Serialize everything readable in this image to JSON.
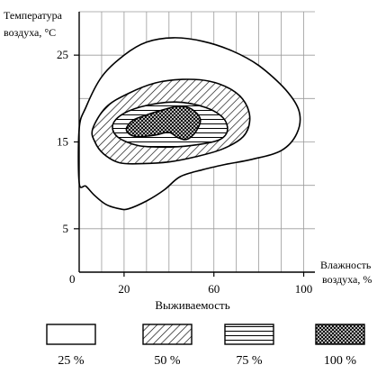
{
  "chart_data": {
    "type": "contour",
    "ylabel_line1": "Температура",
    "ylabel_line2": "воздуха, °С",
    "xlabel_line1": "Влажность",
    "xlabel_line2": "воздуха, %",
    "legend_title": "Выживаемость",
    "x_ticks": [
      "20",
      "60",
      "100"
    ],
    "y_ticks": [
      "5",
      "15",
      "25"
    ],
    "origin_label": "0",
    "xlim": [
      0,
      105
    ],
    "ylim": [
      0,
      30
    ],
    "grid": true,
    "legend_position": "bottom",
    "zones": [
      {
        "label": "25 %",
        "pattern": "blank",
        "outline": [
          [
            0,
            16.5
          ],
          [
            3,
            19
          ],
          [
            10,
            22.5
          ],
          [
            20,
            25
          ],
          [
            30,
            26.5
          ],
          [
            42,
            27
          ],
          [
            55,
            26.6
          ],
          [
            68,
            25.5
          ],
          [
            80,
            23.8
          ],
          [
            92,
            21
          ],
          [
            98,
            18.5
          ],
          [
            97,
            16
          ],
          [
            90,
            14
          ],
          [
            77,
            13
          ],
          [
            65,
            12.4
          ],
          [
            55,
            11.8
          ],
          [
            45,
            11
          ],
          [
            38,
            9.5
          ],
          [
            30,
            8.2
          ],
          [
            22,
            7.3
          ],
          [
            18,
            7.3
          ],
          [
            12,
            7.8
          ],
          [
            7,
            8.8
          ],
          [
            3,
            9.9
          ],
          [
            0,
            10.3
          ]
        ]
      },
      {
        "label": "50 %",
        "pattern": "hatch",
        "outline": [
          [
            6,
            16.5
          ],
          [
            12,
            19
          ],
          [
            22,
            20.6
          ],
          [
            34,
            21.8
          ],
          [
            46,
            22.2
          ],
          [
            58,
            22
          ],
          [
            68,
            21
          ],
          [
            74,
            19.5
          ],
          [
            76,
            17.5
          ],
          [
            73,
            15.6
          ],
          [
            64,
            14.2
          ],
          [
            52,
            13.3
          ],
          [
            40,
            12.7
          ],
          [
            28,
            12.5
          ],
          [
            18,
            12.6
          ],
          [
            11,
            13.6
          ],
          [
            7,
            15
          ]
        ]
      },
      {
        "label": "75 %",
        "pattern": "lines",
        "outline": [
          [
            15,
            17
          ],
          [
            20,
            18.3
          ],
          [
            30,
            19.2
          ],
          [
            43,
            19.6
          ],
          [
            56,
            19
          ],
          [
            64,
            17.8
          ],
          [
            66,
            16.3
          ],
          [
            62,
            15.2
          ],
          [
            50,
            14.6
          ],
          [
            38,
            14.4
          ],
          [
            26,
            14.6
          ],
          [
            17,
            15.6
          ]
        ]
      },
      {
        "label": "100 %",
        "pattern": "crosshatch",
        "outline": [
          [
            21,
            16.5
          ],
          [
            24,
            17.5
          ],
          [
            30,
            18.1
          ],
          [
            36,
            18.6
          ],
          [
            44,
            19.1
          ],
          [
            50,
            18.8
          ],
          [
            54,
            17.6
          ],
          [
            52,
            16.2
          ],
          [
            48,
            15.3
          ],
          [
            44,
            15.5
          ],
          [
            40,
            16.1
          ],
          [
            34,
            15.8
          ],
          [
            27,
            15.6
          ],
          [
            23,
            15.8
          ]
        ]
      }
    ]
  }
}
